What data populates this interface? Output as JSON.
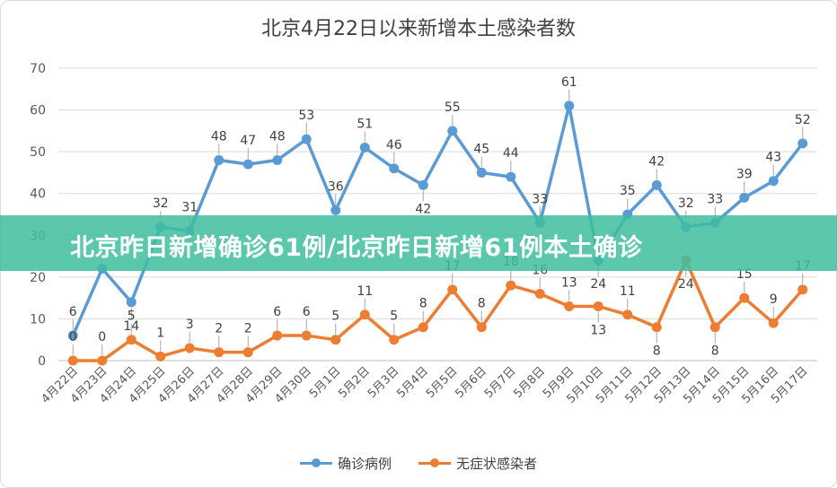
{
  "chart_data": {
    "type": "line",
    "title": "北京4月22日以来新增本土感染者数",
    "categories": [
      "4月22日",
      "4月23日",
      "4月24日",
      "4月25日",
      "4月26日",
      "4月27日",
      "4月28日",
      "4月29日",
      "4月30日",
      "5月1日",
      "5月2日",
      "5月3日",
      "5月4日",
      "5月5日",
      "5月6日",
      "5月7日",
      "5月8日",
      "5月9日",
      "5月10日",
      "5月11日",
      "5月12日",
      "5月13日",
      "5月14日",
      "5月15日",
      "5月16日",
      "5月17日"
    ],
    "ylim": [
      0,
      70
    ],
    "yticks": [
      0,
      10,
      20,
      30,
      40,
      50,
      60,
      70
    ],
    "grid": true,
    "legend_position": "bottom",
    "series": [
      {
        "name": "确诊病例",
        "color": "#5b9bd5",
        "values": [
          6,
          22,
          14,
          32,
          31,
          48,
          47,
          48,
          53,
          36,
          51,
          46,
          42,
          55,
          45,
          44,
          33,
          61,
          24,
          35,
          42,
          32,
          33,
          39,
          43,
          52
        ],
        "labels": [
          "6",
          "",
          "14",
          "32",
          "31",
          "48",
          "47",
          "48",
          "53",
          "36",
          "51",
          "46",
          "42",
          "55",
          "45",
          "44",
          "33",
          "61",
          "24",
          "35",
          "42",
          "32",
          "33",
          "39",
          "43",
          "52"
        ]
      },
      {
        "name": "无症状感染者",
        "color": "#ed7d31",
        "values": [
          0,
          0,
          5,
          1,
          3,
          2,
          2,
          6,
          6,
          5,
          11,
          5,
          8,
          17,
          8,
          18,
          16,
          13,
          13,
          11,
          8,
          24,
          8,
          15,
          9,
          17
        ],
        "labels": [
          "0",
          "0",
          "5",
          "1",
          "3",
          "2",
          "2",
          "6",
          "6",
          "5",
          "11",
          "5",
          "8",
          "17",
          "8",
          "18",
          "16",
          "13",
          "13",
          "11",
          "8",
          "24",
          "8",
          "15",
          "9",
          "17"
        ]
      }
    ]
  },
  "banner": {
    "text": "北京昨日新增确诊61例/北京昨日新增61例本土确诊"
  }
}
